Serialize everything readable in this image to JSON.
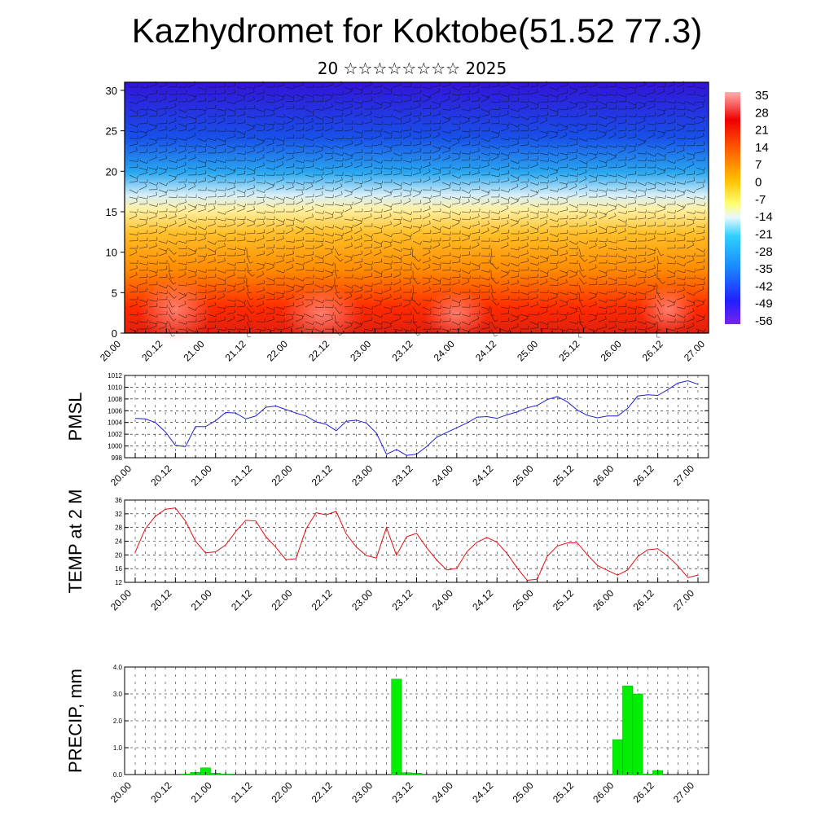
{
  "header": {
    "title": "Kazhydromet for Koktobe(51.52 77.3)",
    "subtitle": "20 ☆☆☆☆☆☆☆☆ 2025"
  },
  "colors": {
    "pmsl_line": "#1f1fd6",
    "temp_line": "#e01010",
    "precip_bar": "#00ee00",
    "axis": "#000000"
  },
  "chart_data": [
    {
      "type": "heatmap",
      "title": "",
      "xlabel": "",
      "ylabel": "",
      "x_ticks": [
        "20.00",
        "20.12",
        "21.00",
        "21.12",
        "22.00",
        "22.12",
        "23.00",
        "23.12",
        "24.00",
        "24.12",
        "25.00",
        "25.12",
        "26.00",
        "26.12",
        "27.00"
      ],
      "y_ticks": [
        0,
        5,
        10,
        15,
        20,
        25,
        30
      ],
      "ylim": [
        0,
        31
      ],
      "colorbar_labels": [
        "35",
        "28",
        "21",
        "14",
        "7",
        "0",
        "-7",
        "-14",
        "-21",
        "-28",
        "-35",
        "-42",
        "-49",
        "-56"
      ],
      "colorbar_range": [
        -63,
        42
      ],
      "overlay": "wind barbs",
      "description_levels": [
        {
          "level": 0,
          "value": 28
        },
        {
          "level": 5,
          "value": 22
        },
        {
          "level": 10,
          "value": 10
        },
        {
          "level": 15,
          "value": -8
        },
        {
          "level": 20,
          "value": -30
        },
        {
          "level": 25,
          "value": -50
        },
        {
          "level": 31,
          "value": -56
        }
      ]
    },
    {
      "type": "line",
      "ylabel": "PMSL",
      "xlabel": "",
      "x_ticks": [
        "20.00",
        "20.12",
        "21.00",
        "21.12",
        "22.00",
        "22.12",
        "23.00",
        "23.12",
        "24.00",
        "24.12",
        "25.00",
        "25.12",
        "26.00",
        "26.12",
        "27.00"
      ],
      "ylim": [
        998,
        1012
      ],
      "y_ticks": [
        998,
        1000,
        1002,
        1004,
        1006,
        1008,
        1010,
        1012
      ],
      "grid": true,
      "x": [
        0,
        3,
        6,
        9,
        12,
        15,
        18,
        21,
        24,
        27,
        30,
        33,
        36,
        39,
        42,
        45,
        48,
        51,
        54,
        57,
        60,
        63,
        66,
        69,
        72,
        75,
        78,
        81,
        84,
        87,
        90,
        93,
        96,
        99,
        102,
        105,
        108,
        111,
        114,
        117,
        120,
        123,
        126,
        129,
        132,
        135,
        138,
        141,
        144,
        147,
        150,
        153,
        156,
        159,
        162,
        165,
        168
      ],
      "values": [
        1004.7,
        1004.6,
        1004,
        1002.4,
        1000.1,
        999.9,
        1003.3,
        1003.3,
        1004.3,
        1005.7,
        1005.6,
        1004.6,
        1005.1,
        1006.6,
        1006.8,
        1006.2,
        1005.6,
        1005.1,
        1004.1,
        1003.7,
        1002.6,
        1004.2,
        1004.4,
        1003.9,
        1002.2,
        998.6,
        999.4,
        998.4,
        998.6,
        999.9,
        1001.5,
        1002.3,
        1003.1,
        1003.9,
        1004.9,
        1005,
        1004.7,
        1005.3,
        1005.8,
        1006.5,
        1006.9,
        1007.9,
        1008.4,
        1007.5,
        1006.1,
        1005.2,
        1004.8,
        1005.1,
        1005.1,
        1006.4,
        1008.5,
        1008.7,
        1008.6,
        1009.6,
        1010.7,
        1011.1,
        1010.5
      ]
    },
    {
      "type": "line",
      "ylabel": "TEMP at 2 M",
      "xlabel": "",
      "x_ticks": [
        "20.00",
        "20.12",
        "21.00",
        "21.12",
        "22.00",
        "22.12",
        "23.00",
        "23.12",
        "24.00",
        "24.12",
        "25.00",
        "25.12",
        "26.00",
        "26.12",
        "27.00"
      ],
      "ylim": [
        12,
        36
      ],
      "y_ticks": [
        12,
        16,
        20,
        24,
        28,
        32,
        36
      ],
      "grid": true,
      "x": [
        0,
        3,
        6,
        9,
        12,
        15,
        18,
        21,
        24,
        27,
        30,
        33,
        36,
        39,
        42,
        45,
        48,
        51,
        54,
        57,
        60,
        63,
        66,
        69,
        72,
        75,
        78,
        81,
        84,
        87,
        90,
        93,
        96,
        99,
        102,
        105,
        108,
        111,
        114,
        117,
        120,
        123,
        126,
        129,
        132,
        135,
        138,
        141,
        144,
        147,
        150,
        153,
        156,
        159,
        162,
        165,
        168
      ],
      "values": [
        20.8,
        27.6,
        31.3,
        33.3,
        33.7,
        29.9,
        24,
        20.6,
        20.9,
        22.9,
        26.8,
        30.1,
        29.9,
        25.3,
        22.2,
        18.6,
        18.9,
        27.6,
        32.3,
        31.7,
        32.7,
        26.1,
        22.3,
        19.8,
        19.1,
        28,
        19.9,
        25.3,
        26.3,
        22.1,
        18.5,
        15.6,
        16.1,
        20.9,
        23.7,
        25.1,
        23.7,
        20.4,
        16.2,
        12.6,
        12.9,
        19.6,
        22.6,
        23.5,
        23.5,
        20,
        16.9,
        15.5,
        14.1,
        15.6,
        19.5,
        21.5,
        21.8,
        19.6,
        16.8,
        13.4,
        14.1
      ]
    },
    {
      "type": "bar",
      "ylabel": "PRECIP, mm",
      "xlabel": "",
      "x_ticks": [
        "20.00",
        "20.12",
        "21.00",
        "21.12",
        "22.00",
        "22.12",
        "23.00",
        "23.12",
        "24.00",
        "24.12",
        "25.00",
        "25.12",
        "26.00",
        "26.12",
        "27.00"
      ],
      "ylim": [
        0,
        4
      ],
      "y_ticks": [
        "0.0",
        "1.0",
        "2.0",
        "3.0",
        "4.0"
      ],
      "grid": true,
      "x": [
        15,
        18,
        21,
        24,
        27,
        78,
        81,
        84,
        144,
        147,
        150,
        153,
        156
      ],
      "values": [
        0.02,
        0.08,
        0.25,
        0.05,
        0.02,
        3.55,
        0.07,
        0.05,
        1.3,
        3.3,
        3.0,
        0.02,
        0.15
      ]
    }
  ]
}
